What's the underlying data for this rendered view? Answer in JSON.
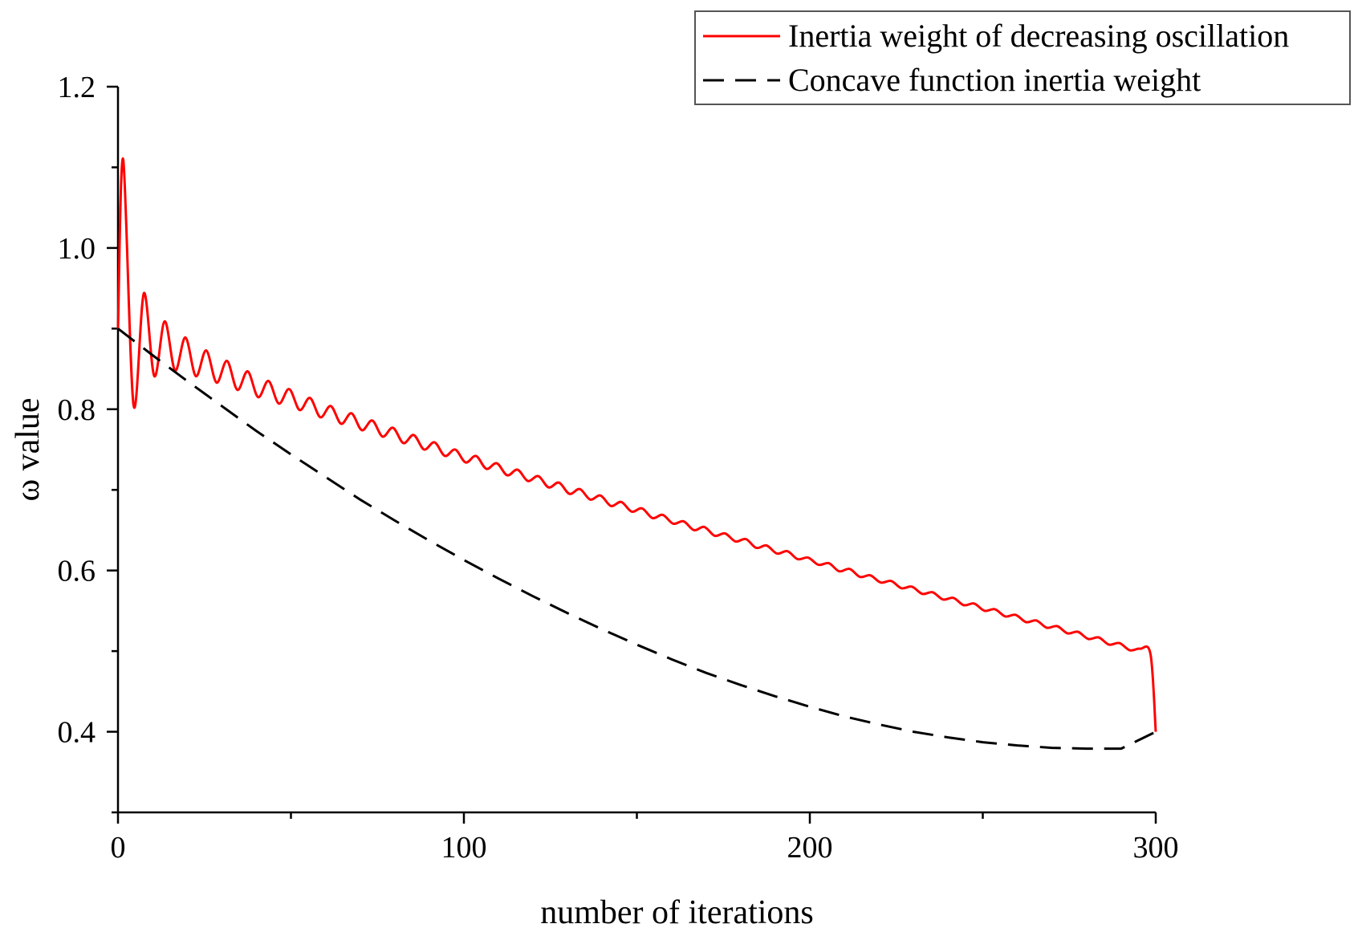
{
  "chart_data": {
    "type": "line",
    "title": "",
    "xlabel": "number of iterations",
    "ylabel": "ω value",
    "xlim": [
      0,
      300
    ],
    "ylim": [
      0.3,
      1.2
    ],
    "x_ticks": [
      0,
      100,
      200,
      300
    ],
    "x_minor_ticks": [
      50,
      150,
      250
    ],
    "y_ticks": [
      0.4,
      0.6,
      0.8,
      1.0,
      1.2
    ],
    "y_tick_labels": [
      "0.4",
      "0.6",
      "0.8",
      "1.0",
      "1.2"
    ],
    "y_minor_ticks": [
      0.3,
      0.5,
      0.7,
      0.9,
      1.1
    ],
    "legend_position": "top-right",
    "series": [
      {
        "name": "Inertia weight of decreasing oscillation",
        "color": "#ff0000",
        "style": "solid",
        "x": [
          0,
          1.5,
          4.5,
          7.5,
          10.5,
          13.5,
          16.5,
          19.5,
          22.5,
          25.5,
          28.5,
          31.5,
          34.5,
          37.5,
          40.5,
          43.5,
          46.5,
          49.5,
          52.5,
          55.5,
          58.5,
          61.5,
          64.5,
          67.5,
          70.5,
          73.5,
          76.5,
          79.5,
          82.5,
          85.5,
          88.5,
          91.5,
          94.5,
          97.5,
          100.5,
          103.5,
          106.5,
          109.5,
          112.5,
          115.5,
          118.5,
          121.5,
          124.5,
          127.5,
          130.5,
          133.5,
          136.5,
          139.5,
          142.5,
          145.5,
          148.5,
          151.5,
          154.5,
          157.5,
          160.5,
          163.5,
          166.5,
          169.5,
          172.5,
          175.5,
          178.5,
          181.5,
          184.5,
          187.5,
          190.5,
          193.5,
          196.5,
          199.5,
          202.5,
          205.5,
          208.5,
          211.5,
          214.5,
          217.5,
          220.5,
          223.5,
          226.5,
          229.5,
          232.5,
          235.5,
          238.5,
          241.5,
          244.5,
          247.5,
          250.5,
          253.5,
          256.5,
          259.5,
          262.5,
          265.5,
          268.5,
          271.5,
          274.5,
          277.5,
          280.5,
          283.5,
          286.5,
          289.5,
          292.5,
          295.5,
          298.5,
          300
        ],
        "y": [
          0.9,
          1.11,
          0.805,
          0.944,
          0.841,
          0.909,
          0.848,
          0.889,
          0.841,
          0.873,
          0.833,
          0.86,
          0.824,
          0.847,
          0.815,
          0.835,
          0.807,
          0.825,
          0.799,
          0.814,
          0.79,
          0.804,
          0.782,
          0.795,
          0.774,
          0.786,
          0.766,
          0.777,
          0.758,
          0.768,
          0.75,
          0.759,
          0.742,
          0.75,
          0.734,
          0.742,
          0.726,
          0.733,
          0.718,
          0.725,
          0.711,
          0.717,
          0.703,
          0.709,
          0.695,
          0.701,
          0.688,
          0.693,
          0.68,
          0.685,
          0.673,
          0.677,
          0.665,
          0.669,
          0.658,
          0.661,
          0.65,
          0.654,
          0.643,
          0.646,
          0.636,
          0.639,
          0.628,
          0.631,
          0.621,
          0.624,
          0.614,
          0.616,
          0.607,
          0.609,
          0.599,
          0.602,
          0.592,
          0.594,
          0.585,
          0.587,
          0.578,
          0.58,
          0.571,
          0.573,
          0.564,
          0.566,
          0.557,
          0.559,
          0.55,
          0.552,
          0.543,
          0.545,
          0.536,
          0.538,
          0.529,
          0.531,
          0.522,
          0.524,
          0.515,
          0.517,
          0.508,
          0.51,
          0.501,
          0.503,
          0.496,
          0.4
        ]
      },
      {
        "name": "Concave function inertia weight",
        "color": "#000000",
        "style": "dashed",
        "x": [
          0,
          10,
          20,
          30,
          40,
          50,
          60,
          70,
          80,
          90,
          100,
          110,
          120,
          130,
          140,
          150,
          160,
          170,
          180,
          190,
          200,
          210,
          220,
          230,
          240,
          250,
          260,
          270,
          280,
          290,
          300
        ],
        "y": [
          0.9,
          0.867,
          0.835,
          0.804,
          0.773,
          0.744,
          0.716,
          0.688,
          0.662,
          0.637,
          0.613,
          0.59,
          0.568,
          0.547,
          0.527,
          0.508,
          0.49,
          0.473,
          0.458,
          0.444,
          0.431,
          0.419,
          0.409,
          0.4,
          0.393,
          0.387,
          0.383,
          0.38,
          0.379,
          0.379,
          0.4
        ]
      }
    ]
  }
}
